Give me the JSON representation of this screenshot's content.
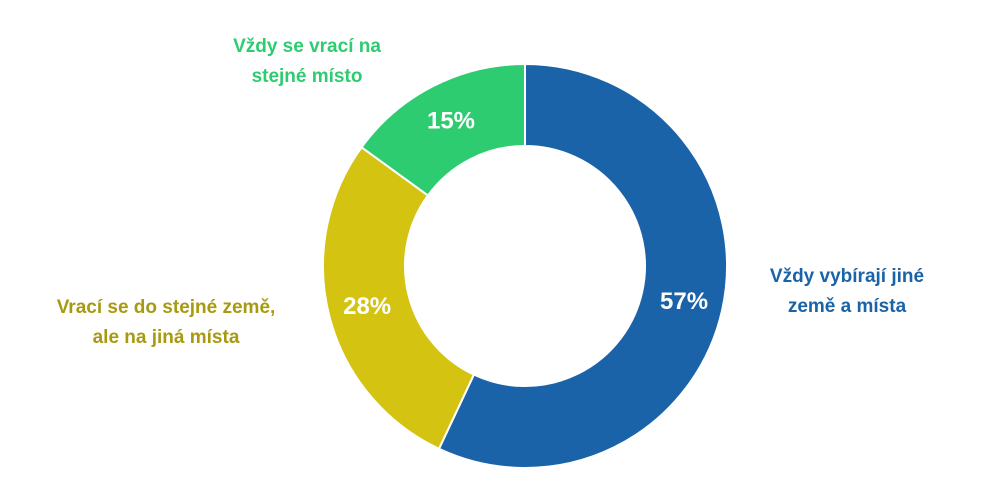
{
  "chart_data": {
    "type": "pie",
    "variant": "donut",
    "title": "",
    "slices": [
      {
        "category_lines": [
          "Vždy vybírají jiné",
          "země a místa"
        ],
        "value": 57,
        "value_label": "57%",
        "color": "#1b63a9"
      },
      {
        "category_lines": [
          "Vrací se do stejné země,",
          "ale na jiná místa"
        ],
        "value": 28,
        "value_label": "28%",
        "color": "#d5c311"
      },
      {
        "category_lines": [
          "Vždy se vrací na",
          "stejné místo"
        ],
        "value": 15,
        "value_label": "15%",
        "color": "#2ecc71"
      }
    ],
    "category_label_colors": [
      "#1b63a9",
      "#a89a10",
      "#2ecc71"
    ],
    "legend": "none"
  }
}
